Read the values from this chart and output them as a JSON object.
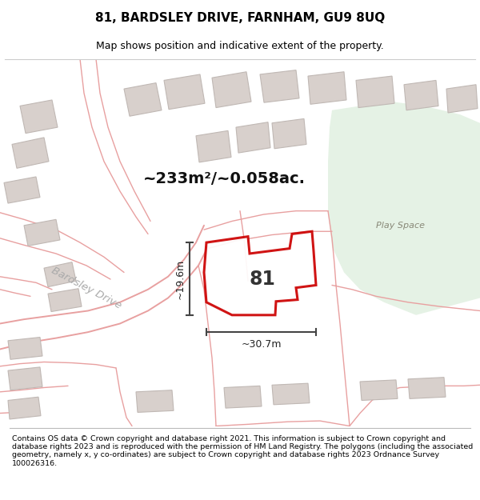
{
  "title": "81, BARDSLEY DRIVE, FARNHAM, GU9 8UQ",
  "subtitle": "Map shows position and indicative extent of the property.",
  "footer": "Contains OS data © Crown copyright and database right 2021. This information is subject to Crown copyright and database rights 2023 and is reproduced with the permission of HM Land Registry. The polygons (including the associated geometry, namely x, y co-ordinates) are subject to Crown copyright and database rights 2023 Ordnance Survey 100026316.",
  "area_label": "~233m²/~0.058ac.",
  "property_number": "81",
  "street_name": "Bardsley Drive",
  "play_space_label": "Play Space",
  "dim_width": "~30.7m",
  "dim_height": "~19.6m",
  "bg_color": "#f0ebe5",
  "play_space_color": "#ddeedd",
  "red_line_color": "#cc0000",
  "dim_line_color": "#444444",
  "road_line_color": "#e8a0a0",
  "building_fill": "#d8d0cc",
  "building_edge": "#c0b8b4",
  "title_fontsize": 11,
  "subtitle_fontsize": 9,
  "footer_fontsize": 6.8
}
